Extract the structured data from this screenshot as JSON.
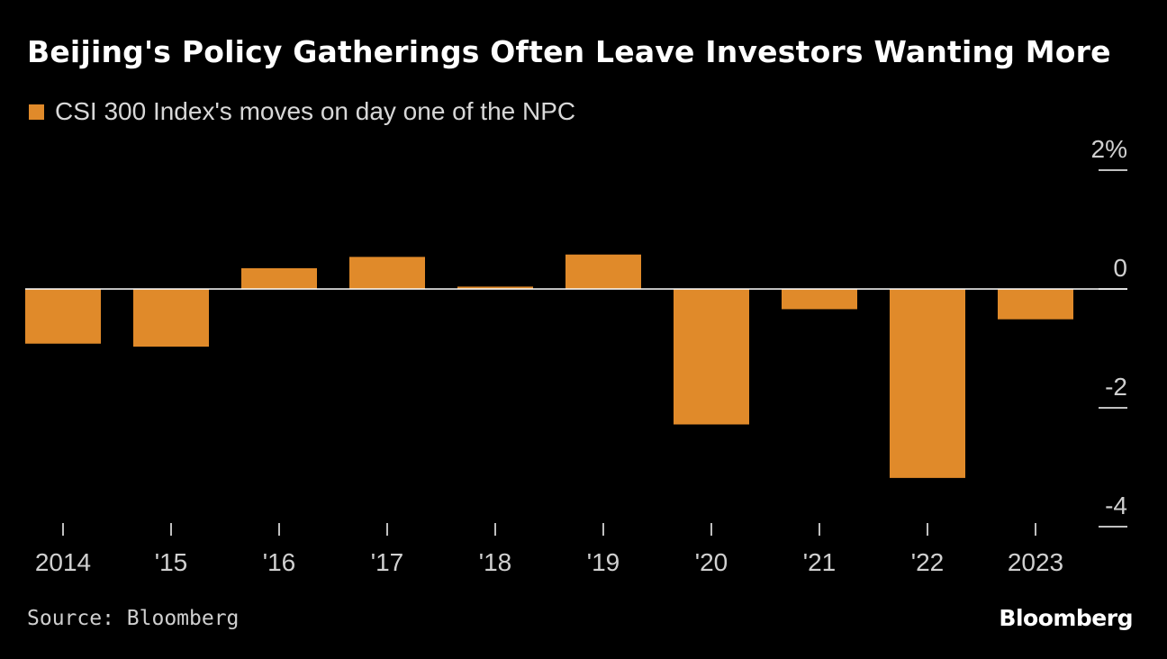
{
  "chart_data": {
    "type": "bar",
    "title": "Beijing's Policy Gatherings Often Leave Investors Wanting More",
    "series": [
      {
        "name": "CSI 300 Index's moves on day one of the NPC",
        "color": "#e08a2a",
        "values": [
          -0.92,
          -0.97,
          0.35,
          0.54,
          0.04,
          0.58,
          -2.28,
          -0.34,
          -3.18,
          -0.51
        ]
      }
    ],
    "categories": [
      "2014",
      "'15",
      "'16",
      "'17",
      "'18",
      "'19",
      "'20",
      "'21",
      "'22",
      "2023"
    ],
    "y_ticks": [
      {
        "value": 2,
        "label": "2%"
      },
      {
        "value": 0,
        "label": "0"
      },
      {
        "value": -2,
        "label": "-2"
      },
      {
        "value": -4,
        "label": "-4"
      }
    ],
    "ylim": [
      -4,
      2
    ],
    "xlabel": "",
    "ylabel": "",
    "legend_position": "top-left",
    "axis_side": "right"
  },
  "source": "Source: Bloomberg",
  "brand": "Bloomberg",
  "colors": {
    "background": "#000000",
    "bar": "#e08a2a",
    "axis": "#ffffff"
  }
}
